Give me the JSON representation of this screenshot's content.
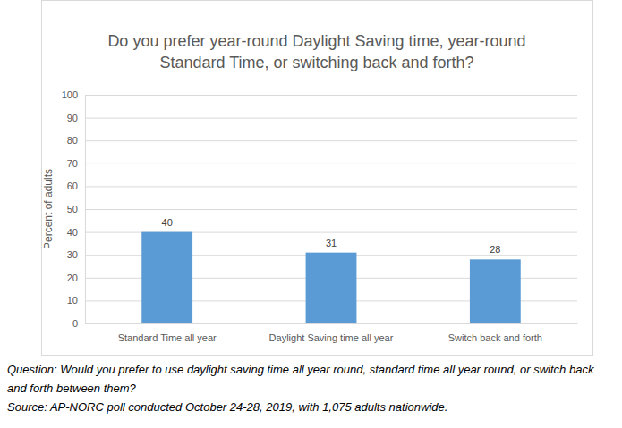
{
  "chart_data": {
    "type": "bar",
    "title": "Do you prefer year-round Daylight Saving time, year-round Standard Time, or switching back and forth?",
    "y_label": "Percent of adults",
    "categories": [
      "Standard Time all year",
      "Daylight Saving time all year",
      "Switch back and forth"
    ],
    "values": [
      40,
      31,
      28
    ],
    "color": "#5b9bd5",
    "ylim": [
      0,
      100
    ],
    "yticks": [
      0,
      10,
      20,
      30,
      40,
      50,
      60,
      70,
      80,
      90,
      100
    ],
    "grid": true,
    "data_labels": true,
    "annotations": [
      "Question: Would you prefer to use daylight saving time all year round, standard time all year round, or switch back and forth between them?",
      "Source: AP-NORC poll conducted October 24-28, 2019, with 1,075 adults nationwide."
    ]
  }
}
